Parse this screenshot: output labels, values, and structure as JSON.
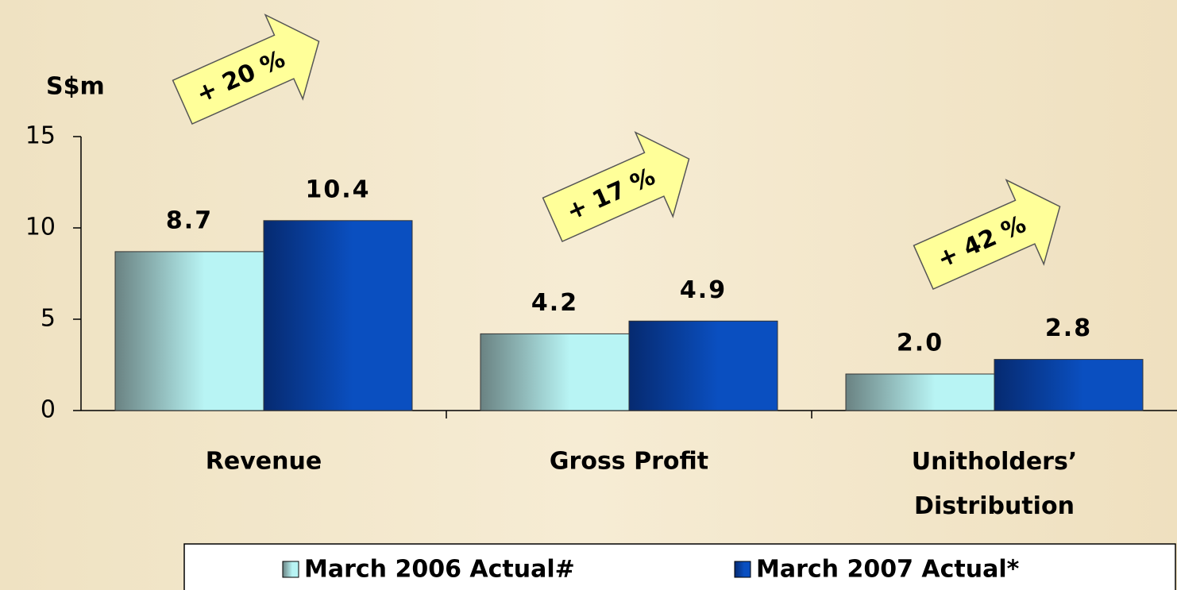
{
  "chart_data": {
    "type": "bar",
    "y_label": "S$m",
    "categories": [
      "Revenue",
      "Gross Profit",
      "Unitholders’ Distribution"
    ],
    "series": [
      {
        "name": "March 2006 Actual#",
        "color": "#b8f4f4",
        "values": [
          8.7,
          4.2,
          2.0
        ],
        "value_labels": [
          "8.7",
          "4.2",
          "2.0"
        ]
      },
      {
        "name": "March 2007 Actual*",
        "color": "#0a4fc0",
        "values": [
          10.4,
          4.9,
          2.8
        ],
        "value_labels": [
          "10.4",
          "4.9",
          "2.8"
        ]
      }
    ],
    "annotations": [
      "+ 20 %",
      "+ 17 %",
      "+ 42 %"
    ],
    "ylim": [
      0,
      15
    ],
    "yticks": [
      0,
      5,
      10,
      15
    ],
    "legend": "bottom"
  }
}
